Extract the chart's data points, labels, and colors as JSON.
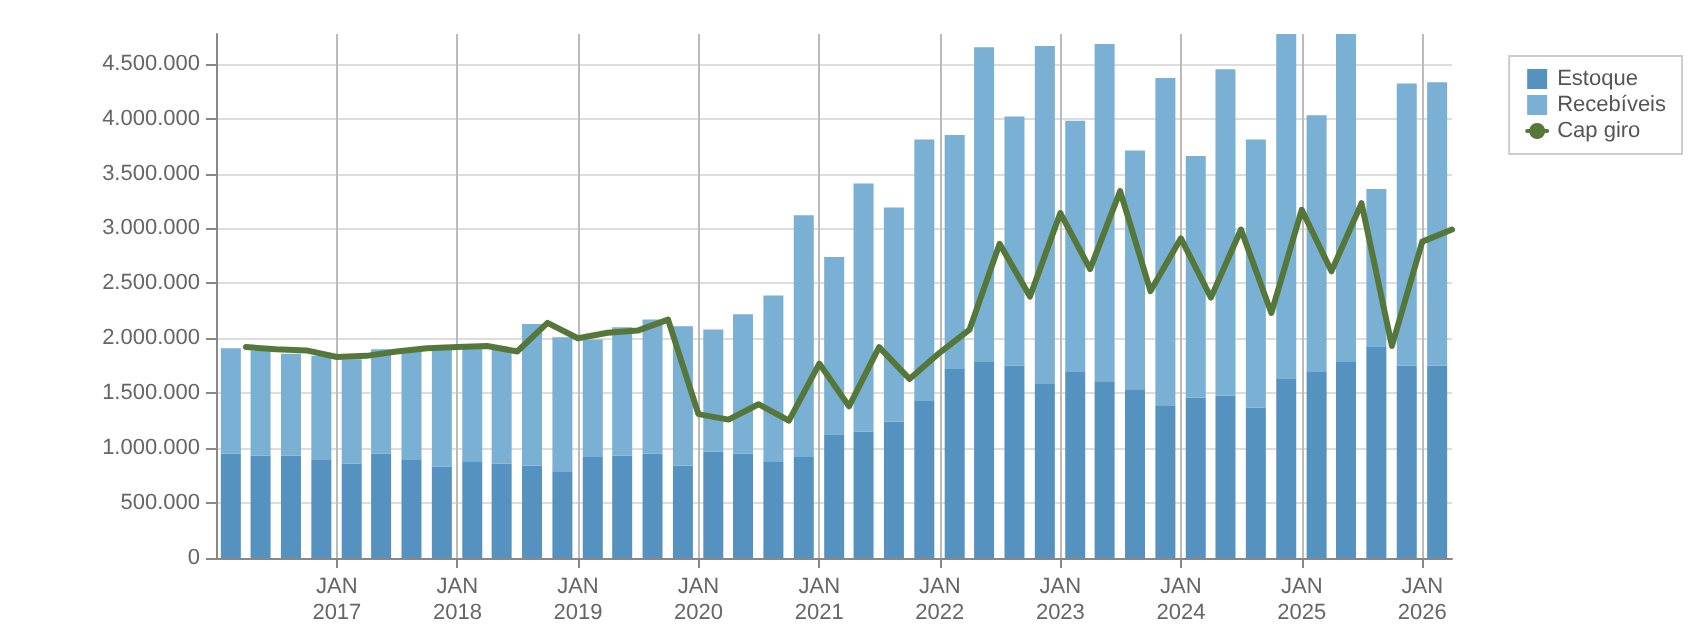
{
  "chart_data": {
    "type": "bar",
    "stacked": true,
    "grid": true,
    "legend": "top right",
    "marker": "none",
    "line_style": "solid",
    "x": [
      "2016-02-15",
      "2016-05-15",
      "2016-08-15",
      "2016-11-15",
      "2017-02-15",
      "2017-05-15",
      "2017-08-15",
      "2017-11-15",
      "2018-02-15",
      "2018-05-15",
      "2018-08-15",
      "2018-11-15",
      "2019-02-15",
      "2019-05-15",
      "2019-08-15",
      "2019-11-15",
      "2020-02-15",
      "2020-05-15",
      "2020-08-15",
      "2020-11-15",
      "2021-02-15",
      "2021-05-15",
      "2021-08-15",
      "2021-11-15",
      "2022-02-15",
      "2022-05-15",
      "2022-08-15",
      "2022-11-15",
      "2023-02-15",
      "2023-05-15",
      "2023-08-15",
      "2023-11-15",
      "2024-02-15",
      "2024-05-15",
      "2024-08-15",
      "2024-11-15",
      "2025-02-15",
      "2025-05-15",
      "2025-08-15",
      "2025-11-15",
      "2026-02-15"
    ],
    "xlim": [
      "2016-01-01",
      "2026-04-01"
    ],
    "xticks": [
      {
        "value": "2017-01-01",
        "label": "JAN\n2017"
      },
      {
        "value": "2018-01-01",
        "label": "JAN\n2018"
      },
      {
        "value": "2019-01-01",
        "label": "JAN\n2019"
      },
      {
        "value": "2020-01-01",
        "label": "JAN\n2020"
      },
      {
        "value": "2021-01-01",
        "label": "JAN\n2021"
      },
      {
        "value": "2022-01-01",
        "label": "JAN\n2022"
      },
      {
        "value": "2023-01-01",
        "label": "JAN\n2023"
      },
      {
        "value": "2024-01-01",
        "label": "JAN\n2024"
      },
      {
        "value": "2025-01-01",
        "label": "JAN\n2025"
      },
      {
        "value": "2026-01-01",
        "label": "JAN\n2026"
      }
    ],
    "ylim": [
      0,
      4770000
    ],
    "yticks": [
      0,
      {
        "value": 500000,
        "label": "500.000"
      },
      {
        "value": 1000000,
        "label": "1.000.000"
      },
      {
        "value": 1500000,
        "label": "1.500.000"
      },
      {
        "value": 2000000,
        "label": "2.000.000"
      },
      {
        "value": 2500000,
        "label": "2.500.000"
      },
      {
        "value": 3000000,
        "label": "3.000.000"
      },
      {
        "value": 3500000,
        "label": "3.500.000"
      },
      {
        "value": 4000000,
        "label": "4.000.000"
      },
      {
        "value": 4500000,
        "label": "4.500.000"
      }
    ],
    "series": [
      {
        "name": "Estoque",
        "color": "#5592bf",
        "values": [
          950000,
          930000,
          930000,
          900000,
          860000,
          950000,
          900000,
          830000,
          880000,
          860000,
          840000,
          790000,
          920000,
          930000,
          950000,
          840000,
          970000,
          950000,
          880000,
          920000,
          1120000,
          1150000,
          1240000,
          1430000,
          1720000,
          1790000,
          1750000,
          1590000,
          1700000,
          1610000,
          1530000,
          1390000,
          1460000,
          1480000,
          1370000,
          1630000,
          1700000,
          1790000,
          1920000,
          1750000,
          1750000
        ]
      },
      {
        "name": "Recebíveis",
        "color": "#79b0d3",
        "values": [
          960000,
          960000,
          930000,
          940000,
          950000,
          950000,
          1000000,
          1090000,
          1040000,
          1040000,
          1290000,
          1220000,
          1070000,
          1170000,
          1220000,
          1270000,
          1110000,
          1270000,
          1510000,
          2200000,
          1620000,
          2260000,
          1950000,
          2380000,
          2130000,
          2860000,
          2270000,
          3070000,
          2280000,
          3070000,
          2180000,
          2980000,
          2200000,
          2970000,
          2440000,
          3140000,
          2330000,
          2980000,
          1440000,
          2570000,
          2580000
        ]
      },
      {
        "name": "Cap giro",
        "type": "line",
        "color": "#56773a",
        "x": [
          "2016-04-01",
          "2016-07-01",
          "2016-10-01",
          "2017-01-01",
          "2017-04-01",
          "2017-07-01",
          "2017-10-01",
          "2018-01-01",
          "2018-04-01",
          "2018-07-01",
          "2018-10-01",
          "2019-01-01",
          "2019-04-01",
          "2019-07-01",
          "2019-10-01",
          "2020-01-01",
          "2020-04-01",
          "2020-07-01",
          "2020-10-01",
          "2021-01-01",
          "2021-04-01",
          "2021-07-01",
          "2021-10-01",
          "2022-01-01",
          "2022-04-01",
          "2022-07-01",
          "2022-10-01",
          "2023-01-01",
          "2023-04-01",
          "2023-07-01",
          "2023-10-01",
          "2024-01-01",
          "2024-04-01",
          "2024-07-01",
          "2024-10-01",
          "2025-01-01",
          "2025-04-01",
          "2025-07-01",
          "2025-10-01",
          "2026-01-01",
          "2026-04-01"
        ],
        "values": [
          1920000,
          1900000,
          1890000,
          1830000,
          1840000,
          1880000,
          1910000,
          1920000,
          1930000,
          1880000,
          2140000,
          2000000,
          2050000,
          2070000,
          2170000,
          1310000,
          1260000,
          1400000,
          1250000,
          1770000,
          1380000,
          1920000,
          1630000,
          1870000,
          2080000,
          2860000,
          2380000,
          3140000,
          2630000,
          3340000,
          2430000,
          2910000,
          2370000,
          2990000,
          2230000,
          3170000,
          2610000,
          3230000,
          1930000,
          2880000,
          2990000
        ]
      }
    ]
  }
}
